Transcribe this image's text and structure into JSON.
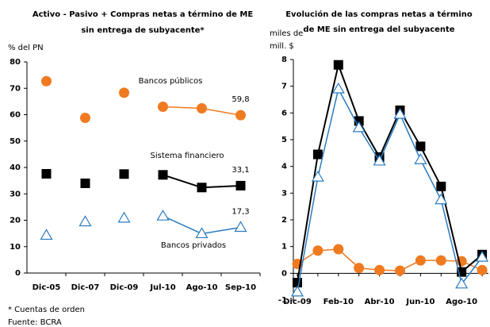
{
  "chart_data": [
    {
      "type": "line",
      "title": [
        "Activo - Pasivo + Compras netas a término de ME",
        "sin entrega de subyacente*"
      ],
      "y_label": "% del PN",
      "categories": [
        "Dic-05",
        "Dic-07",
        "Dic-09",
        "Jul-10",
        "Ago-10",
        "Sep-10"
      ],
      "line_from": "Jul-10",
      "series": [
        {
          "name": "Bancos públicos",
          "color": "#f07a20",
          "marker": "circle",
          "values": [
            72.7,
            58.8,
            68.3,
            63,
            62.4,
            59.8
          ],
          "value_labels": [
            null,
            null,
            null,
            null,
            null,
            "59,8"
          ]
        },
        {
          "name": "Sistema financiero",
          "color": "#000000",
          "marker": "square",
          "values": [
            37.6,
            34,
            37.5,
            37.2,
            32.4,
            33.1
          ],
          "value_labels": [
            null,
            null,
            null,
            null,
            null,
            "33,1"
          ]
        },
        {
          "name": "Bancos privados",
          "color": "#2a7bc0",
          "marker": "triangle-open",
          "values": [
            14.3,
            19.4,
            20.8,
            21.6,
            14.9,
            17.3
          ],
          "value_labels": [
            null,
            null,
            null,
            null,
            null,
            "17,3"
          ]
        }
      ],
      "ylim": [
        0,
        80
      ],
      "yticks": [
        0,
        10,
        20,
        30,
        40,
        50,
        60,
        70,
        80
      ],
      "notes": [
        "* Cuentas de orden",
        "Fuente: BCRA"
      ]
    },
    {
      "type": "line",
      "title": [
        "Evolución de las compras netas a término",
        "de ME sin entrega del subyacente"
      ],
      "y_label": [
        "miles de",
        "mill. $"
      ],
      "categories": [
        "Dic-09",
        null,
        "Feb-10",
        null,
        "Abr-10",
        null,
        "Jun-10",
        null,
        "Ago-10",
        null
      ],
      "series": [
        {
          "color": "#f07a20",
          "marker": "circle",
          "values": [
            0.35,
            0.85,
            0.9,
            0.2,
            0.12,
            0.1,
            0.48,
            0.48,
            0.45,
            0.12
          ]
        },
        {
          "color": "#000000",
          "marker": "square",
          "values": [
            -0.35,
            4.45,
            7.8,
            5.7,
            4.35,
            6.1,
            4.75,
            3.25,
            0.05,
            0.7
          ]
        },
        {
          "color": "#2a7bc0",
          "marker": "triangle-open",
          "values": [
            -0.7,
            3.6,
            6.9,
            5.45,
            4.2,
            5.95,
            4.25,
            2.75,
            -0.4,
            0.6
          ]
        }
      ],
      "ylim": [
        -1,
        8
      ],
      "yticks": [
        -1,
        0,
        1,
        2,
        3,
        4,
        5,
        6,
        7,
        8
      ]
    }
  ]
}
